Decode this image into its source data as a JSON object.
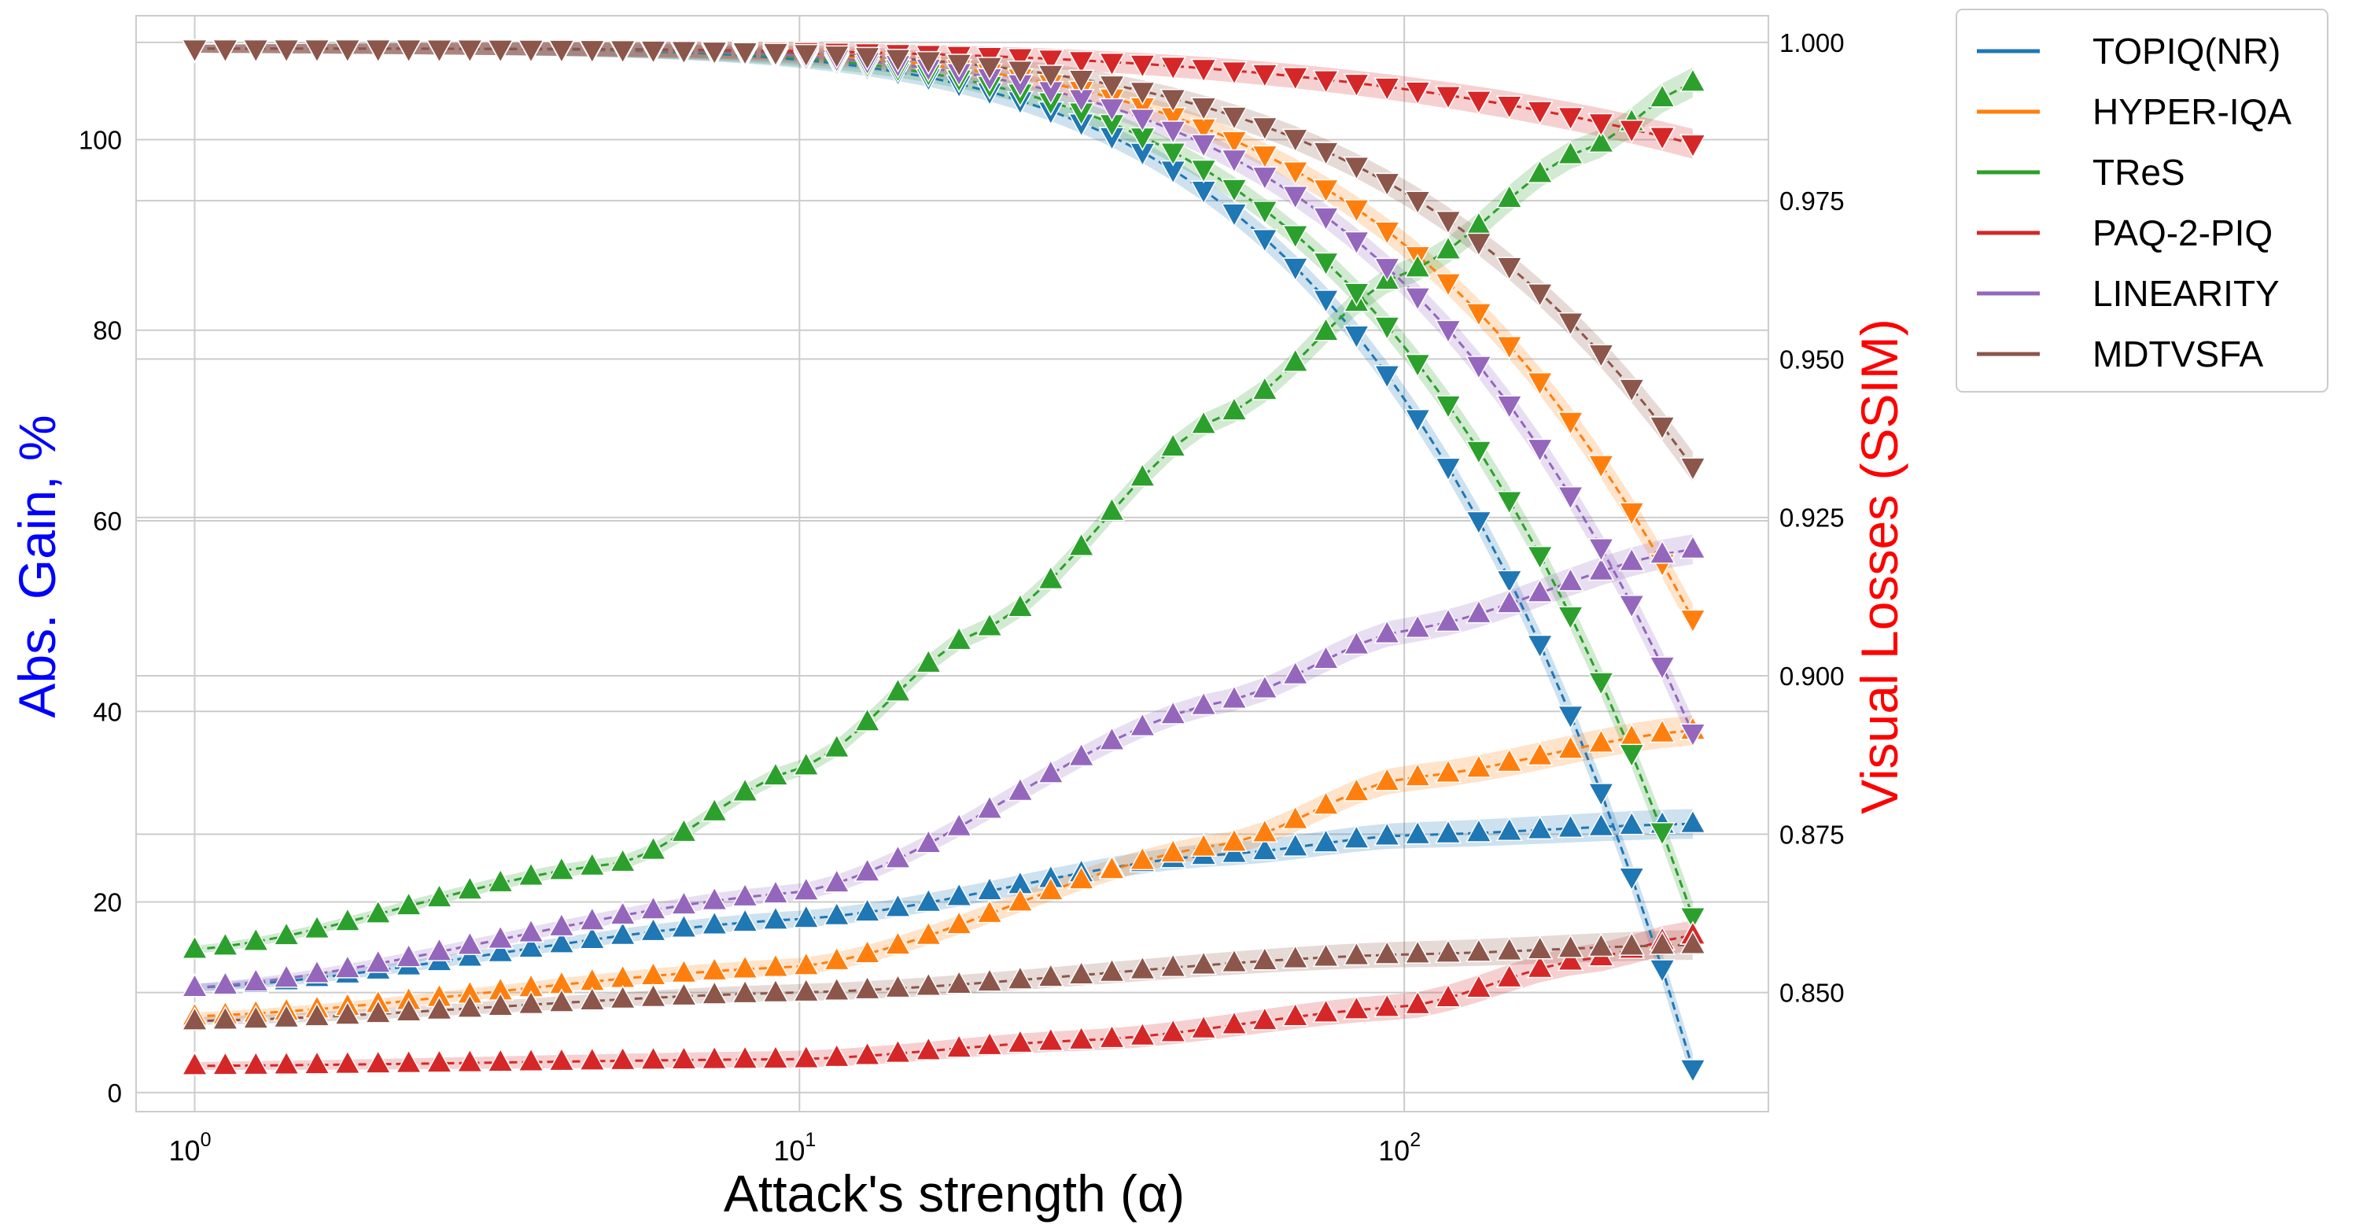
{
  "chart_data": {
    "type": "line",
    "subtype": "dual-axis log-x line with markers and confidence bands",
    "xlabel": "Attack's strength (α)",
    "ylabel_left": "Abs. Gain, %",
    "ylabel_right": "Visual Losses (SSIM)",
    "x_scale": "log",
    "x_range": [
      0.8,
      400
    ],
    "x_ticks": [
      {
        "value": 1,
        "base": "10",
        "exp": "0"
      },
      {
        "value": 10,
        "base": "10",
        "exp": "1"
      },
      {
        "value": 100,
        "base": "10",
        "exp": "2"
      }
    ],
    "ylim_left": [
      -2,
      113
    ],
    "yticks_left": [
      "0",
      "20",
      "40",
      "60",
      "80",
      "100"
    ],
    "ylim_right": [
      0.8312,
      1.0042
    ],
    "yticks_right": [
      "0.850",
      "0.875",
      "0.900",
      "0.925",
      "0.950",
      "0.975",
      "1.000"
    ],
    "x_min": 1,
    "x_max": 300,
    "n_points": 50,
    "grid": true,
    "legend_position": "outside-top-right",
    "colors": {
      "left_axis_label": "#0000ff",
      "right_axis_label": "#ff0000",
      "grid": "#cccccc",
      "axes_frame": "#cccccc"
    },
    "series": [
      {
        "name": "TOPIQ(NR)",
        "color": "#1f77b4",
        "gain": {
          "knots": [
            [
              1,
              11.0
            ],
            [
              10,
              18.2
            ],
            [
              50,
              25.0
            ],
            [
              100,
              27.0
            ],
            [
              300,
              28.2
            ]
          ]
        },
        "ssim": {
          "start": 0.999,
          "end": 0.838,
          "power": 5.0
        }
      },
      {
        "name": "HYPER-IQA",
        "color": "#ff7f0e",
        "gain": {
          "knots": [
            [
              1,
              8.0
            ],
            [
              10,
              13.2
            ],
            [
              50,
              26.0
            ],
            [
              100,
              33.0
            ],
            [
              300,
              38.0
            ]
          ]
        },
        "ssim": {
          "start": 0.999,
          "end": 0.909,
          "power": 5.0
        }
      },
      {
        "name": "TReS",
        "color": "#2ca02c",
        "gain": {
          "knots": [
            [
              1,
              15.0
            ],
            [
              5,
              24.0
            ],
            [
              10,
              34.0
            ],
            [
              20,
              48.5
            ],
            [
              50,
              71.0
            ],
            [
              100,
              86.0
            ],
            [
              200,
              99.0
            ],
            [
              300,
              106.0
            ]
          ]
        },
        "ssim": {
          "start": 0.999,
          "end": 0.862,
          "power": 5.0
        }
      },
      {
        "name": "PAQ-2-PIQ",
        "color": "#d62728",
        "gain": {
          "knots": [
            [
              1,
              2.8
            ],
            [
              10,
              3.5
            ],
            [
              30,
              5.5
            ],
            [
              100,
              9.0
            ],
            [
              200,
              14.0
            ],
            [
              300,
              16.5
            ]
          ]
        },
        "ssim": {
          "start": 0.999,
          "end": 0.984,
          "power": 4.0
        }
      },
      {
        "name": "LINEARITY",
        "color": "#9467bd",
        "gain": {
          "knots": [
            [
              1,
              11.0
            ],
            [
              10,
              21.0
            ],
            [
              50,
              41.0
            ],
            [
              100,
              48.5
            ],
            [
              300,
              57.0
            ]
          ]
        },
        "ssim": {
          "start": 0.999,
          "end": 0.891,
          "power": 5.0
        }
      },
      {
        "name": "MDTVSFA",
        "color": "#8c564b",
        "gain": {
          "knots": [
            [
              1,
              7.5
            ],
            [
              10,
              10.5
            ],
            [
              100,
              14.5
            ],
            [
              300,
              15.5
            ]
          ]
        },
        "ssim": {
          "start": 0.999,
          "end": 0.933,
          "power": 5.0
        }
      }
    ]
  }
}
